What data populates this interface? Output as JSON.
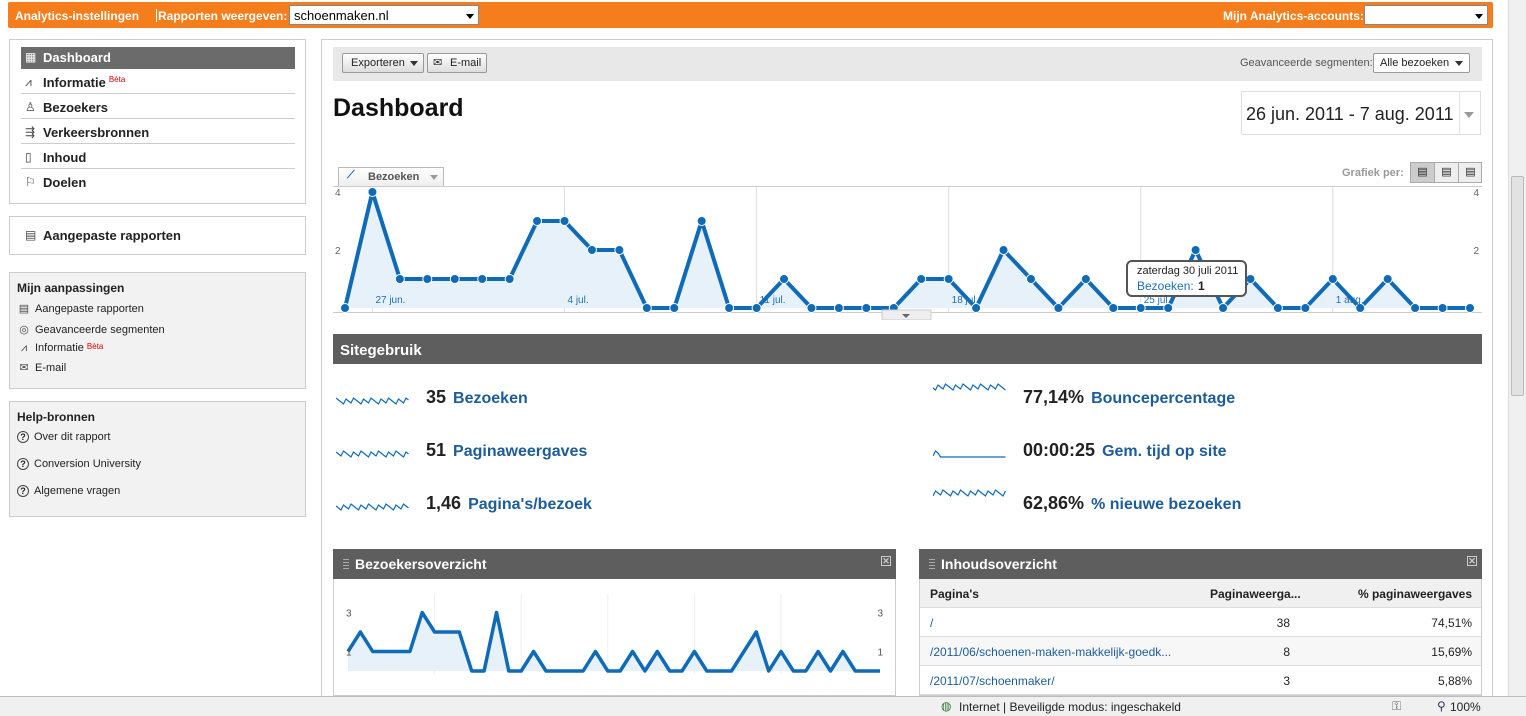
{
  "topbar": {
    "settings": "Analytics-instellingen",
    "reports_label": "Rapporten weergeven:",
    "site": "schoenmaken.nl",
    "accounts_label": "Mijn Analytics-accounts:"
  },
  "nav": {
    "items": [
      {
        "label": "Dashboard",
        "icon": "dashboard-icon"
      },
      {
        "label": "Informatie",
        "icon": "sparkline-icon",
        "beta": "Bèta"
      },
      {
        "label": "Bezoekers",
        "icon": "person-icon"
      },
      {
        "label": "Verkeersbronnen",
        "icon": "traffic-icon"
      },
      {
        "label": "Inhoud",
        "icon": "page-icon"
      },
      {
        "label": "Doelen",
        "icon": "flag-icon"
      }
    ],
    "custom_reports": "Aangepaste rapporten"
  },
  "customizations": {
    "title": "Mijn aanpassingen",
    "items": [
      {
        "label": "Aangepaste rapporten"
      },
      {
        "label": "Geavanceerde segmenten"
      },
      {
        "label": "Informatie",
        "beta": "Bèta"
      },
      {
        "label": "E-mail"
      }
    ]
  },
  "help": {
    "title": "Help-bronnen",
    "items": [
      "Over dit rapport",
      "Conversion University",
      "Algemene vragen"
    ]
  },
  "toolbar": {
    "export": "Exporteren",
    "email": "E-mail",
    "segments_label": "Geavanceerde segmenten:",
    "segment": "Alle bezoeken"
  },
  "page_title": "Dashboard",
  "date_range": "26 jun. 2011 - 7 aug. 2011",
  "graph": {
    "metric": "Bezoeken",
    "per_label": "Grafiek per:",
    "tooltip_date": "zaterdag 30 juli 2011",
    "tooltip_label": "Bezoeken:",
    "tooltip_value": "1"
  },
  "chart_data": {
    "type": "line",
    "title": "",
    "series": [
      {
        "name": "Bezoeken",
        "values": [
          0,
          4,
          1,
          1,
          1,
          1,
          1,
          3,
          3,
          2,
          2,
          0,
          0,
          3,
          0,
          0,
          1,
          0,
          0,
          0,
          0,
          1,
          1,
          0,
          2,
          1,
          0,
          1,
          0,
          0,
          0,
          2,
          0,
          1,
          0,
          0,
          1,
          0,
          1,
          0,
          0,
          0
        ]
      }
    ],
    "x_tick_labels": [
      "27 jun.",
      "4 jul.",
      "11 jul.",
      "18 jul.",
      "25 jul.",
      "1 aug."
    ],
    "y_ticks": [
      2,
      4
    ],
    "ylim": [
      0,
      4
    ],
    "grid": true
  },
  "site_usage": {
    "title": "Sitegebruik",
    "metrics": [
      {
        "value": "35",
        "label": "Bezoeken"
      },
      {
        "value": "77,14%",
        "label": "Bouncepercentage"
      },
      {
        "value": "51",
        "label": "Paginaweergaves"
      },
      {
        "value": "00:00:25",
        "label": "Gem. tijd op site"
      },
      {
        "value": "1,46",
        "label": "Pagina's/bezoek"
      },
      {
        "value": "62,86%",
        "label": "% nieuwe bezoeken"
      }
    ]
  },
  "visitors_widget": {
    "title": "Bezoekersoverzicht",
    "y_ticks": [
      1,
      3
    ],
    "values": [
      1,
      2,
      1,
      1,
      1,
      1,
      3,
      2,
      2,
      2,
      0,
      0,
      3,
      0,
      0,
      1,
      0,
      0,
      0,
      0,
      1,
      0,
      0,
      1,
      0,
      1,
      0,
      0,
      1,
      0,
      0,
      0,
      1,
      2,
      0,
      1,
      0,
      0,
      1,
      0,
      1,
      0,
      0,
      0
    ]
  },
  "content_widget": {
    "title": "Inhoudsoverzicht",
    "headers": [
      "Pagina's",
      "Paginaweerga...",
      "% paginaweergaves"
    ],
    "rows": [
      [
        "/",
        "38",
        "74,51%"
      ],
      [
        "/2011/06/schoenen-maken-makkelijk-goedk...",
        "8",
        "15,69%"
      ],
      [
        "/2011/07/schoenmaker/",
        "3",
        "5,88%"
      ]
    ]
  },
  "statusbar": {
    "zone": "Internet | Beveiligde modus: ingeschakeld",
    "zoom": "100%"
  },
  "colors": {
    "accent": "#f57d1b",
    "line": "#0f6ab8",
    "link": "#1d5c9a"
  }
}
